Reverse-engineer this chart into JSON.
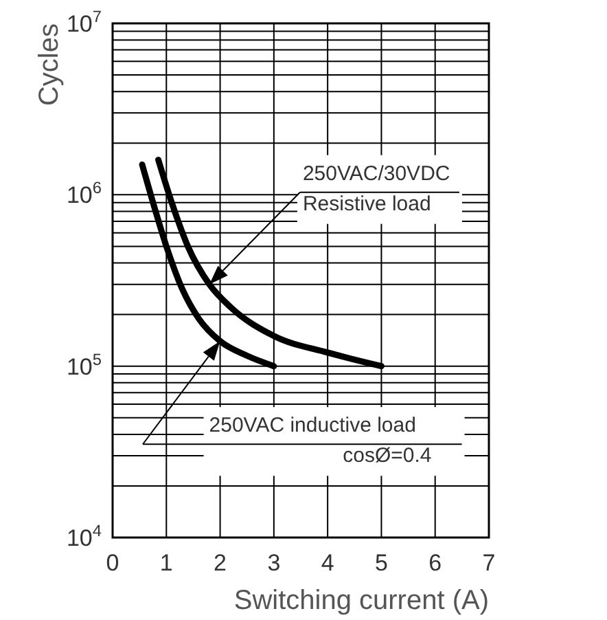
{
  "chart_data": {
    "type": "line",
    "xlabel": "Switching current (A)",
    "ylabel": "Cycles",
    "log": "y",
    "grid": true,
    "marker": "none",
    "line_style": "solid",
    "xlim": [
      0,
      7
    ],
    "xticks": [
      0,
      1,
      2,
      3,
      4,
      5,
      6,
      7
    ],
    "ylim": [
      10000,
      10000000
    ],
    "yticks": [
      {
        "value": 10000,
        "label": "10$^{4}$"
      },
      {
        "value": 100000,
        "label": "10$^{5}$"
      },
      {
        "value": 1000000,
        "label": "10$^{6}$"
      },
      {
        "value": 10000000,
        "label": "10$^{7}$"
      }
    ],
    "series": [
      {
        "color": "#000000",
        "x": [
          0.85,
          1.1,
          1.4,
          1.8,
          2.2,
          3,
          4,
          5
        ],
        "values": [
          1600000,
          900000,
          500000,
          300000,
          220000,
          150000,
          120000,
          100000
        ]
      },
      {
        "color": "#000000",
        "x": [
          0.55,
          0.8,
          1.0,
          1.3,
          1.6,
          2.0,
          2.5,
          3
        ],
        "values": [
          1500000,
          800000,
          500000,
          280000,
          190000,
          140000,
          115000,
          100000
        ]
      }
    ],
    "annotations": [
      "250VAC/30VDC\nResistive load",
      "250VAC inductive load\ncosØ=0.4"
    ]
  }
}
